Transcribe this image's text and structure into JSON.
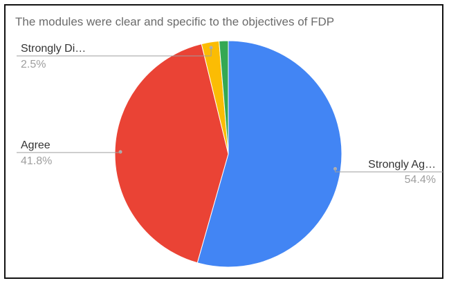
{
  "chart_data": {
    "type": "pie",
    "title": "The modules were clear and specific to the objectives of FDP",
    "slices": [
      {
        "label": "Strongly Ag…",
        "value": 54.4,
        "percent_label": "54.4%",
        "color": "#4285f4"
      },
      {
        "label": "Agree",
        "value": 41.8,
        "percent_label": "41.8%",
        "color": "#ea4335"
      },
      {
        "label": "Strongly Di…",
        "value": 2.5,
        "percent_label": "2.5%",
        "color": "#fbbc04"
      },
      {
        "label": "",
        "value": 1.3,
        "percent_label": "",
        "color": "#34a853"
      }
    ],
    "legend": "none",
    "start_angle": "top, clockwise"
  }
}
